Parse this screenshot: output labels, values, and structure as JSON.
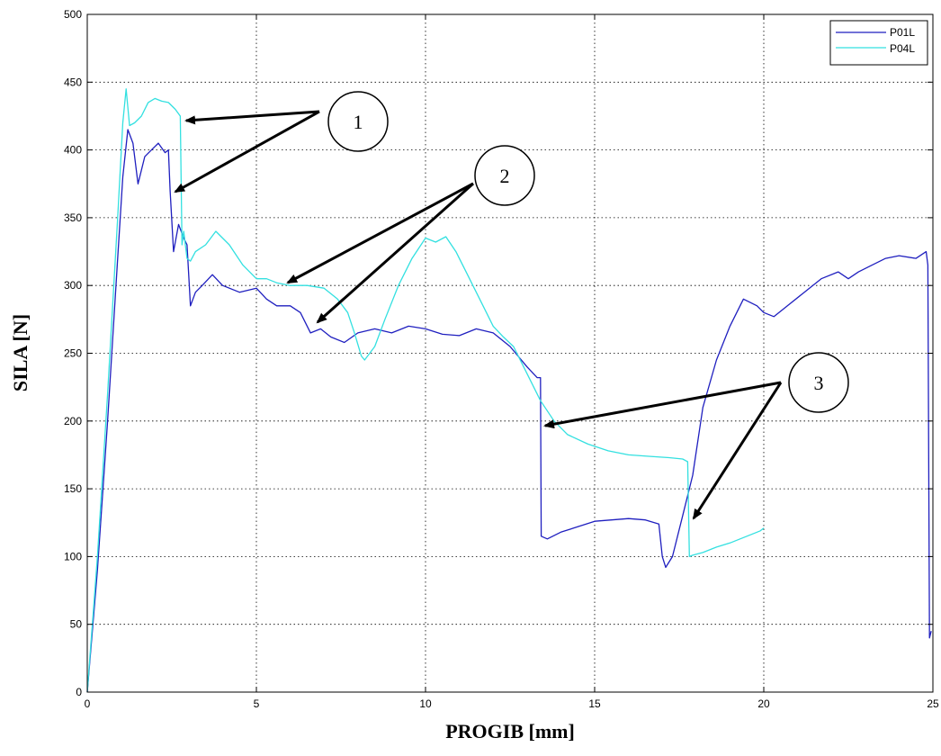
{
  "chart_data": {
    "type": "line",
    "title": "",
    "xlabel": "PROGIB [mm]",
    "ylabel": "SILA [N]",
    "xlim": [
      0,
      25
    ],
    "ylim": [
      0,
      500
    ],
    "xticks": [
      0,
      5,
      10,
      15,
      20,
      25
    ],
    "yticks": [
      0,
      50,
      100,
      150,
      200,
      250,
      300,
      350,
      400,
      450,
      500
    ],
    "grid": true,
    "legend": "top-right",
    "series": [
      {
        "name": "P01L",
        "color": "#1f1fbf",
        "x": [
          0,
          0.3,
          0.6,
          0.9,
          1.05,
          1.2,
          1.35,
          1.5,
          1.7,
          1.9,
          2.1,
          2.3,
          2.4,
          2.45,
          2.55,
          2.7,
          2.85,
          2.95,
          3.05,
          3.2,
          3.4,
          3.7,
          4.0,
          4.5,
          5.0,
          5.3,
          5.6,
          6.0,
          6.3,
          6.6,
          6.9,
          7.2,
          7.6,
          8.0,
          8.5,
          9.0,
          9.5,
          10.0,
          10.5,
          11.0,
          11.5,
          12.0,
          12.5,
          13.0,
          13.3,
          13.4,
          13.42,
          13.6,
          14.0,
          14.5,
          15.0,
          15.5,
          16.0,
          16.5,
          16.9,
          17.0,
          17.1,
          17.3,
          17.6,
          17.9,
          18.2,
          18.6,
          19.0,
          19.4,
          19.8,
          20.0,
          20.3,
          20.7,
          21.2,
          21.7,
          22.2,
          22.5,
          22.8,
          23.2,
          23.6,
          24.0,
          24.5,
          24.8,
          24.85,
          24.9,
          24.95
        ],
        "y": [
          0,
          90,
          200,
          320,
          380,
          415,
          405,
          375,
          395,
          400,
          405,
          398,
          400,
          370,
          325,
          345,
          335,
          330,
          285,
          295,
          300,
          308,
          300,
          295,
          298,
          290,
          285,
          285,
          280,
          265,
          268,
          262,
          258,
          265,
          268,
          265,
          270,
          268,
          264,
          263,
          268,
          265,
          255,
          240,
          232,
          232,
          115,
          113,
          118,
          122,
          126,
          127,
          128,
          127,
          124,
          100,
          92,
          100,
          130,
          160,
          210,
          245,
          270,
          290,
          285,
          280,
          277,
          285,
          295,
          305,
          310,
          305,
          310,
          315,
          320,
          322,
          320,
          325,
          315,
          40,
          45
        ]
      },
      {
        "name": "P04L",
        "color": "#33e0e0",
        "x": [
          0,
          0.3,
          0.6,
          0.9,
          1.05,
          1.15,
          1.25,
          1.4,
          1.6,
          1.8,
          2.0,
          2.2,
          2.4,
          2.6,
          2.75,
          2.8,
          2.85,
          2.95,
          3.05,
          3.2,
          3.5,
          3.8,
          4.2,
          4.6,
          5.0,
          5.3,
          5.6,
          6.0,
          6.5,
          7.0,
          7.4,
          7.7,
          7.9,
          8.1,
          8.2,
          8.5,
          8.8,
          9.2,
          9.6,
          10.0,
          10.3,
          10.6,
          10.9,
          11.2,
          11.5,
          11.8,
          12.0,
          12.3,
          12.6,
          13.0,
          13.4,
          13.8,
          14.2,
          14.8,
          15.4,
          16.0,
          16.6,
          17.2,
          17.6,
          17.75,
          17.8,
          17.9,
          18.2,
          18.6,
          19.0,
          19.5,
          19.9,
          20.0
        ],
        "x_note": "",
        "y": [
          0,
          100,
          220,
          350,
          420,
          445,
          418,
          420,
          425,
          435,
          438,
          436,
          435,
          430,
          425,
          330,
          340,
          320,
          318,
          325,
          330,
          340,
          330,
          315,
          305,
          305,
          302,
          300,
          300,
          298,
          290,
          280,
          265,
          248,
          245,
          255,
          275,
          300,
          320,
          335,
          332,
          336,
          325,
          310,
          295,
          280,
          270,
          262,
          255,
          235,
          215,
          200,
          190,
          183,
          178,
          175,
          174,
          173,
          172,
          170,
          100,
          101,
          103,
          107,
          110,
          115,
          119,
          121
        ]
      }
    ],
    "annotations": [
      {
        "label": "1"
      },
      {
        "label": "2"
      },
      {
        "label": "3"
      }
    ]
  }
}
